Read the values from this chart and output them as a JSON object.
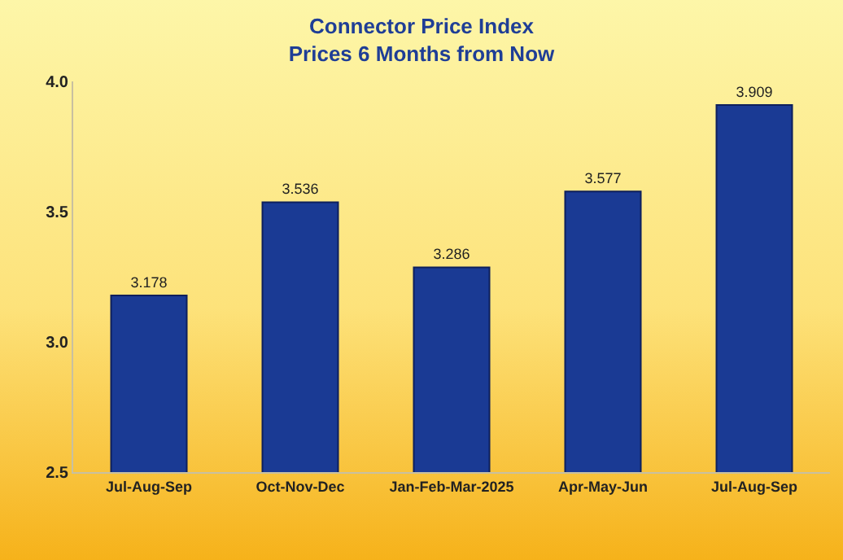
{
  "chart_data": {
    "type": "bar",
    "title": "Connector Price Index\nPrices 6 Months from Now",
    "categories": [
      "Jul-Aug-Sep",
      "Oct-Nov-Dec",
      "Jan-Feb-Mar-2025",
      "Apr-May-Jun",
      "Jul-Aug-Sep"
    ],
    "values": [
      3.178,
      3.536,
      3.286,
      3.577,
      3.909
    ],
    "color": "#1a3a94",
    "ylim": [
      2.5,
      4.0
    ],
    "yticks": [
      2.5,
      {
        "value": 3,
        "label": "3.0"
      },
      3.5,
      {
        "value": 4,
        "label": "4.0"
      }
    ],
    "grid": false,
    "data_labels": true
  }
}
